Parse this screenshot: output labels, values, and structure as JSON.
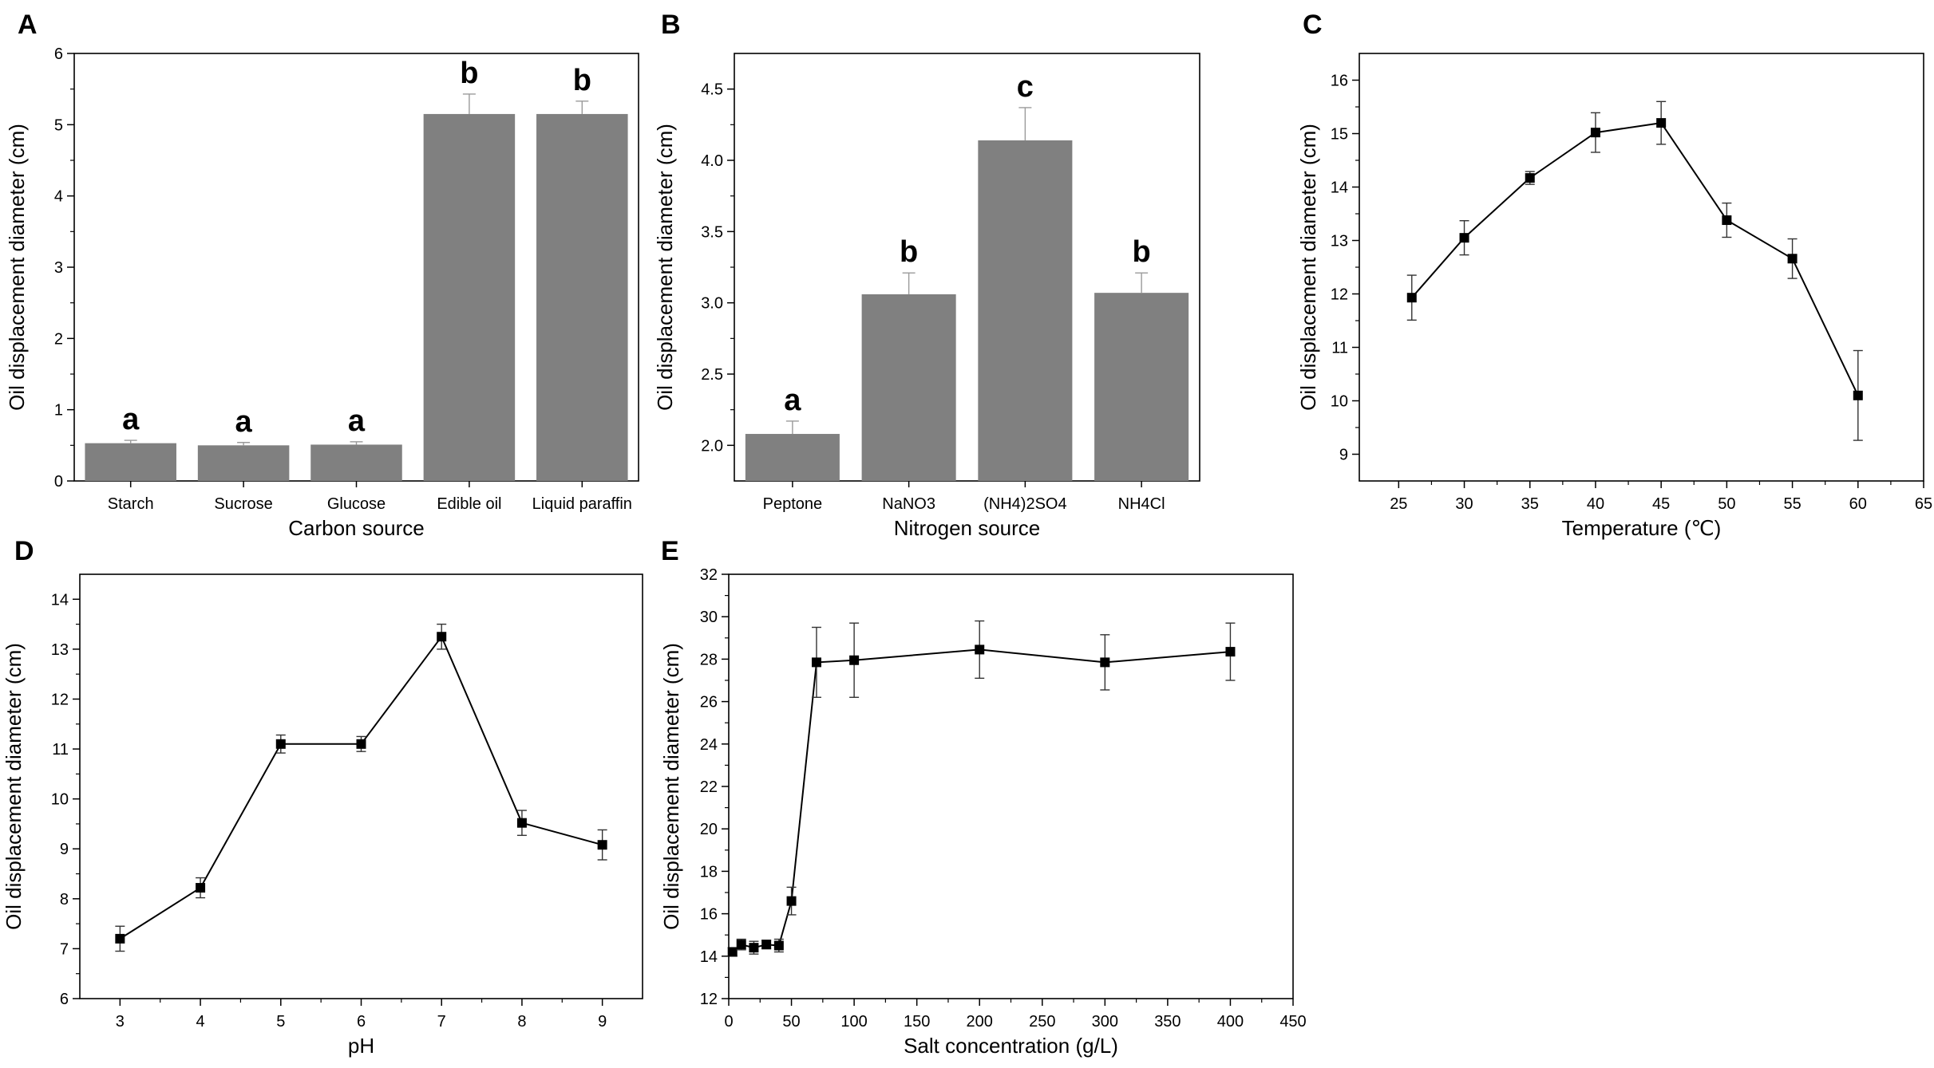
{
  "chart_data": [
    {
      "panel": "A",
      "type": "bar",
      "categories": [
        "Starch",
        "Sucrose",
        "Glucose",
        "Edible oil",
        "Liquid paraffin"
      ],
      "values": [
        0.53,
        0.5,
        0.51,
        5.15,
        5.15
      ],
      "errors": [
        0.04,
        0.04,
        0.04,
        0.28,
        0.18
      ],
      "significance": [
        "a",
        "a",
        "a",
        "b",
        "b"
      ],
      "xlabel": "Carbon source",
      "ylabel": "Oil displacement diameter (cm)",
      "ylim": [
        0,
        6
      ],
      "yticks": [
        "0",
        "1",
        "2",
        "3",
        "4",
        "5",
        "6"
      ],
      "bar_color": "#808080"
    },
    {
      "panel": "B",
      "type": "bar",
      "categories": [
        "Peptone",
        "NaNO3",
        "(NH4)2SO4",
        "NH4Cl"
      ],
      "values": [
        2.08,
        3.06,
        4.14,
        3.07
      ],
      "errors": [
        0.09,
        0.15,
        0.23,
        0.14
      ],
      "significance": [
        "a",
        "b",
        "c",
        "b"
      ],
      "xlabel": "Nitrogen source",
      "ylabel": "Oil displacement diameter (cm)",
      "ylim": [
        1.75,
        4.75
      ],
      "yticks": [
        "2.0",
        "2.5",
        "3.0",
        "3.5",
        "4.0",
        "4.5"
      ],
      "bar_color": "#808080"
    },
    {
      "panel": "C",
      "type": "line",
      "x": [
        26,
        30,
        35,
        40,
        45,
        50,
        55,
        60
      ],
      "y": [
        11.93,
        13.05,
        14.17,
        15.02,
        15.2,
        13.38,
        12.66,
        10.1
      ],
      "errors": [
        0.42,
        0.32,
        0.12,
        0.37,
        0.4,
        0.32,
        0.37,
        0.84
      ],
      "xlabel": "Temperature (℃)",
      "ylabel": "Oil displacement diameter (cm)",
      "xlim": [
        22,
        65
      ],
      "ylim": [
        8.5,
        16.5
      ],
      "xticks": [
        "25",
        "30",
        "35",
        "40",
        "45",
        "50",
        "55",
        "60",
        "65"
      ],
      "yticks": [
        "9",
        "10",
        "11",
        "12",
        "13",
        "14",
        "15",
        "16"
      ]
    },
    {
      "panel": "D",
      "type": "line",
      "x": [
        3,
        4,
        5,
        6,
        7,
        8,
        9
      ],
      "y": [
        7.2,
        8.22,
        11.1,
        11.1,
        13.25,
        9.52,
        9.08
      ],
      "errors": [
        0.25,
        0.2,
        0.18,
        0.15,
        0.25,
        0.25,
        0.3
      ],
      "xlabel": "pH",
      "ylabel": "Oil displacement diameter (cm)",
      "xlim": [
        2.5,
        9.5
      ],
      "ylim": [
        6,
        14.5
      ],
      "xticks": [
        "3",
        "4",
        "5",
        "6",
        "7",
        "8",
        "9"
      ],
      "yticks": [
        "6",
        "7",
        "8",
        "9",
        "10",
        "11",
        "12",
        "13",
        "14"
      ]
    },
    {
      "panel": "E",
      "type": "line",
      "x": [
        3,
        10,
        20,
        30,
        40,
        50,
        70,
        100,
        200,
        300,
        400
      ],
      "y": [
        14.2,
        14.55,
        14.4,
        14.55,
        14.5,
        16.6,
        27.85,
        27.95,
        28.45,
        27.85,
        28.35
      ],
      "errors": [
        0.2,
        0.25,
        0.3,
        0.2,
        0.3,
        0.65,
        1.65,
        1.75,
        1.35,
        1.3,
        1.35
      ],
      "xlabel": "Salt concentration (g/L)",
      "ylabel": "Oil displacement diameter (cm)",
      "xlim": [
        0,
        450
      ],
      "ylim": [
        12,
        32
      ],
      "xticks": [
        "0",
        "50",
        "100",
        "150",
        "200",
        "250",
        "300",
        "350",
        "400",
        "450"
      ],
      "yticks": [
        "12",
        "14",
        "16",
        "18",
        "20",
        "22",
        "24",
        "26",
        "28",
        "30",
        "32"
      ]
    }
  ]
}
